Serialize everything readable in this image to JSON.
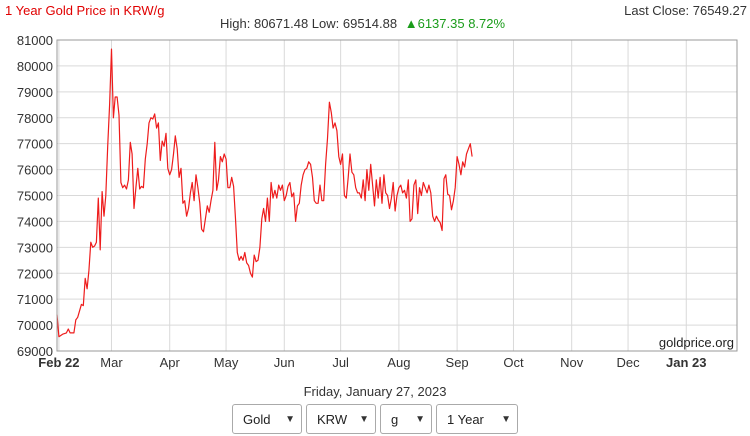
{
  "header": {
    "title": "1 Year Gold Price in KRW/g",
    "last_close": "Last Close: 76549.27",
    "stats_prefix": "High: 80671.48 Low: 69514.88",
    "change_text": "▲6137.35 8.72%",
    "title_color": "#e00000",
    "change_color": "#1a9c1a"
  },
  "footer": {
    "date": "Friday, January 27, 2023",
    "watermark": "goldprice.org"
  },
  "controls": {
    "metal": "Gold",
    "currency": "KRW",
    "weight": "g",
    "period": "1 Year"
  },
  "chart_data": {
    "type": "line",
    "title": "1 Year Gold Price in KRW/g",
    "xlabel": "",
    "ylabel": "",
    "ylim": [
      69000,
      81000
    ],
    "grid": true,
    "line_color": "#ee1c1c",
    "y_ticks": [
      69000,
      70000,
      71000,
      72000,
      73000,
      74000,
      75000,
      76000,
      77000,
      78000,
      79000,
      80000,
      81000
    ],
    "x_ticks": [
      {
        "label": "Feb 22",
        "x": 0,
        "bold": true
      },
      {
        "label": "Mar",
        "x": 28,
        "bold": false
      },
      {
        "label": "Apr",
        "x": 59,
        "bold": false
      },
      {
        "label": "May",
        "x": 89,
        "bold": false
      },
      {
        "label": "Jun",
        "x": 120,
        "bold": false
      },
      {
        "label": "Jul",
        "x": 150,
        "bold": false
      },
      {
        "label": "Aug",
        "x": 181,
        "bold": false
      },
      {
        "label": "Sep",
        "x": 212,
        "bold": false
      },
      {
        "label": "Oct",
        "x": 242,
        "bold": false
      },
      {
        "label": "Nov",
        "x": 273,
        "bold": false
      },
      {
        "label": "Dec",
        "x": 303,
        "bold": false
      },
      {
        "label": "Jan 23",
        "x": 334,
        "bold": true
      }
    ],
    "xlim": [
      -1,
      361
    ],
    "series": [
      {
        "values": [
          [
            -1,
            70400
          ],
          [
            0,
            69550
          ],
          [
            2,
            69650
          ],
          [
            4,
            69700
          ],
          [
            5,
            69850
          ],
          [
            6,
            69700
          ],
          [
            8,
            69700
          ],
          [
            9,
            70200
          ],
          [
            10,
            70300
          ],
          [
            12,
            70800
          ],
          [
            13,
            70750
          ],
          [
            14,
            71800
          ],
          [
            15,
            71400
          ],
          [
            16,
            72100
          ],
          [
            17,
            73200
          ],
          [
            18,
            73000
          ],
          [
            19,
            73050
          ],
          [
            20,
            73200
          ],
          [
            21,
            74900
          ],
          [
            22,
            72900
          ],
          [
            23,
            75150
          ],
          [
            24,
            74200
          ],
          [
            25,
            75000
          ],
          [
            26,
            76900
          ],
          [
            27,
            78500
          ],
          [
            28,
            80650
          ],
          [
            29,
            78000
          ],
          [
            30,
            78800
          ],
          [
            31,
            78800
          ],
          [
            32,
            78100
          ],
          [
            33,
            75500
          ],
          [
            34,
            75300
          ],
          [
            35,
            75400
          ],
          [
            36,
            75250
          ],
          [
            37,
            75600
          ],
          [
            38,
            77050
          ],
          [
            39,
            76600
          ],
          [
            40,
            74500
          ],
          [
            41,
            75300
          ],
          [
            42,
            76050
          ],
          [
            43,
            75250
          ],
          [
            44,
            75350
          ],
          [
            45,
            75300
          ],
          [
            46,
            76400
          ],
          [
            47,
            77000
          ],
          [
            48,
            77800
          ],
          [
            49,
            78000
          ],
          [
            50,
            77950
          ],
          [
            51,
            78150
          ],
          [
            52,
            77600
          ],
          [
            53,
            77800
          ],
          [
            54,
            76350
          ],
          [
            55,
            77100
          ],
          [
            56,
            76900
          ],
          [
            57,
            77400
          ],
          [
            58,
            76050
          ],
          [
            59,
            75800
          ],
          [
            60,
            76000
          ],
          [
            61,
            76600
          ],
          [
            62,
            77300
          ],
          [
            63,
            76800
          ],
          [
            64,
            75700
          ],
          [
            65,
            76050
          ],
          [
            66,
            74700
          ],
          [
            67,
            74800
          ],
          [
            68,
            74200
          ],
          [
            69,
            74500
          ],
          [
            70,
            75100
          ],
          [
            71,
            75500
          ],
          [
            72,
            74800
          ],
          [
            73,
            75800
          ],
          [
            74,
            75300
          ],
          [
            75,
            74700
          ],
          [
            76,
            73700
          ],
          [
            77,
            73600
          ],
          [
            78,
            74100
          ],
          [
            79,
            74600
          ],
          [
            80,
            74350
          ],
          [
            81,
            74800
          ],
          [
            82,
            75200
          ],
          [
            83,
            77050
          ],
          [
            84,
            75200
          ],
          [
            85,
            75600
          ],
          [
            86,
            76500
          ],
          [
            87,
            76300
          ],
          [
            88,
            76600
          ],
          [
            89,
            76400
          ],
          [
            90,
            75300
          ],
          [
            91,
            75300
          ],
          [
            92,
            75700
          ],
          [
            93,
            75350
          ],
          [
            94,
            74100
          ],
          [
            95,
            72800
          ],
          [
            96,
            72500
          ],
          [
            97,
            72650
          ],
          [
            98,
            72500
          ],
          [
            99,
            72800
          ],
          [
            100,
            72400
          ],
          [
            101,
            72300
          ],
          [
            102,
            72000
          ],
          [
            103,
            71850
          ],
          [
            104,
            72700
          ],
          [
            105,
            72450
          ],
          [
            106,
            72500
          ],
          [
            107,
            73000
          ],
          [
            108,
            74100
          ],
          [
            109,
            74500
          ],
          [
            110,
            74000
          ],
          [
            111,
            74900
          ],
          [
            112,
            74000
          ],
          [
            113,
            75500
          ],
          [
            114,
            74900
          ],
          [
            115,
            75200
          ],
          [
            116,
            74900
          ],
          [
            117,
            75400
          ],
          [
            118,
            75200
          ],
          [
            119,
            75400
          ],
          [
            120,
            74800
          ],
          [
            121,
            75000
          ],
          [
            122,
            75350
          ],
          [
            123,
            75500
          ],
          [
            124,
            74950
          ],
          [
            125,
            75100
          ],
          [
            126,
            74000
          ],
          [
            127,
            74600
          ],
          [
            128,
            74700
          ],
          [
            129,
            75400
          ],
          [
            130,
            75800
          ],
          [
            131,
            76000
          ],
          [
            132,
            76050
          ],
          [
            133,
            76300
          ],
          [
            134,
            76200
          ],
          [
            135,
            75700
          ],
          [
            136,
            74800
          ],
          [
            137,
            74700
          ],
          [
            138,
            74700
          ],
          [
            139,
            75400
          ],
          [
            140,
            74800
          ],
          [
            141,
            74800
          ],
          [
            142,
            76200
          ],
          [
            143,
            77200
          ],
          [
            144,
            78600
          ],
          [
            145,
            78200
          ],
          [
            146,
            77600
          ],
          [
            147,
            77800
          ],
          [
            148,
            77500
          ],
          [
            149,
            76500
          ],
          [
            150,
            76200
          ],
          [
            151,
            76600
          ],
          [
            152,
            75000
          ],
          [
            153,
            74900
          ],
          [
            154,
            75700
          ],
          [
            155,
            76600
          ],
          [
            156,
            75900
          ],
          [
            157,
            75800
          ],
          [
            158,
            75300
          ],
          [
            159,
            75100
          ],
          [
            160,
            75100
          ],
          [
            161,
            74900
          ],
          [
            162,
            75600
          ],
          [
            163,
            74800
          ],
          [
            164,
            76000
          ],
          [
            165,
            75200
          ],
          [
            166,
            76200
          ],
          [
            167,
            75400
          ],
          [
            168,
            74600
          ],
          [
            169,
            75600
          ],
          [
            170,
            74900
          ],
          [
            171,
            75700
          ],
          [
            172,
            74700
          ],
          [
            173,
            75800
          ],
          [
            174,
            75100
          ],
          [
            175,
            75000
          ],
          [
            176,
            74500
          ],
          [
            177,
            74900
          ],
          [
            178,
            75500
          ],
          [
            179,
            74400
          ],
          [
            180,
            75000
          ],
          [
            181,
            75300
          ],
          [
            182,
            75400
          ],
          [
            183,
            75100
          ],
          [
            184,
            75200
          ],
          [
            185,
            74900
          ],
          [
            186,
            75600
          ],
          [
            187,
            74000
          ],
          [
            188,
            74100
          ],
          [
            189,
            75400
          ],
          [
            190,
            75600
          ],
          [
            191,
            74300
          ],
          [
            192,
            75300
          ],
          [
            193,
            75000
          ],
          [
            194,
            75500
          ],
          [
            195,
            75300
          ],
          [
            196,
            75100
          ],
          [
            197,
            75400
          ],
          [
            198,
            75100
          ],
          [
            199,
            74200
          ],
          [
            200,
            74000
          ],
          [
            201,
            74200
          ],
          [
            202,
            74050
          ],
          [
            203,
            73950
          ],
          [
            204,
            73650
          ],
          [
            205,
            75650
          ],
          [
            206,
            75800
          ],
          [
            207,
            75050
          ],
          [
            208,
            75000
          ],
          [
            209,
            74450
          ],
          [
            210,
            74800
          ],
          [
            211,
            75300
          ],
          [
            212,
            76500
          ],
          [
            213,
            76200
          ],
          [
            214,
            75800
          ],
          [
            215,
            76300
          ],
          [
            216,
            76100
          ],
          [
            217,
            76600
          ],
          [
            218,
            76800
          ],
          [
            219,
            77000
          ],
          [
            220,
            76500
          ]
        ]
      }
    ]
  }
}
